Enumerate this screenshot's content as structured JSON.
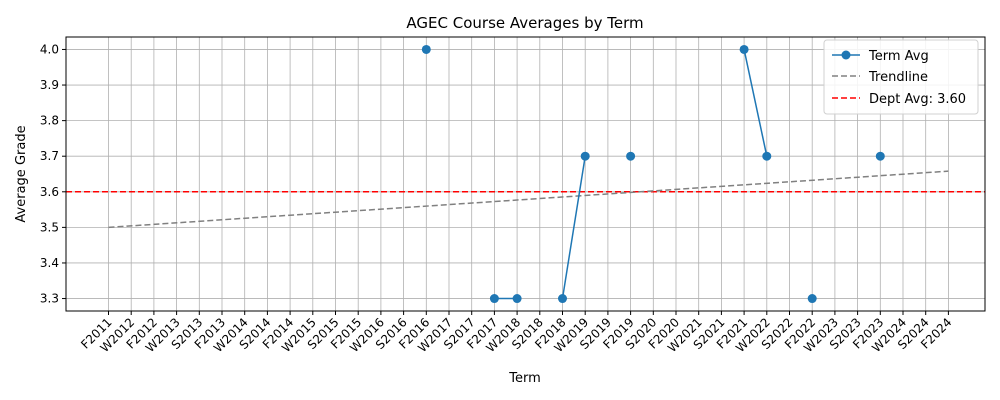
{
  "chart_data": {
    "type": "line",
    "title": "AGEC Course Averages by Term",
    "xlabel": "Term",
    "ylabel": "Average Grade",
    "ylim": [
      3.265,
      4.035
    ],
    "yticks": [
      3.3,
      3.4,
      3.5,
      3.6,
      3.7,
      3.8,
      3.9,
      4.0
    ],
    "ytick_labels": [
      "3.3",
      "3.4",
      "3.5",
      "3.6",
      "3.7",
      "3.8",
      "3.9",
      "4.0"
    ],
    "grid": true,
    "legend_position": "top-right",
    "categories": [
      "F2011",
      "W2012",
      "F2012",
      "W2013",
      "S2013",
      "F2013",
      "W2014",
      "S2014",
      "F2014",
      "W2015",
      "S2015",
      "F2015",
      "W2016",
      "S2016",
      "F2016",
      "W2017",
      "S2017",
      "F2017",
      "W2018",
      "S2018",
      "F2018",
      "W2019",
      "S2019",
      "F2019",
      "S2020",
      "F2020",
      "W2021",
      "S2021",
      "F2021",
      "W2022",
      "S2022",
      "F2022",
      "W2023",
      "S2023",
      "F2023",
      "W2024",
      "S2024",
      "F2024"
    ],
    "series": [
      {
        "name": "Term Avg",
        "color": "#1f77b4",
        "style": "solid-with-markers",
        "values": [
          null,
          null,
          null,
          null,
          null,
          null,
          null,
          null,
          null,
          null,
          null,
          null,
          null,
          null,
          4.0,
          null,
          null,
          3.3,
          3.3,
          null,
          3.3,
          3.7,
          null,
          3.7,
          null,
          null,
          null,
          null,
          4.0,
          3.7,
          null,
          3.3,
          null,
          null,
          3.7,
          null,
          null,
          null
        ]
      },
      {
        "name": "Trendline",
        "color": "#808080",
        "style": "dashed",
        "start": {
          "x": "F2011",
          "y": 3.5
        },
        "end": {
          "x": "F2024",
          "y": 3.658
        }
      },
      {
        "name": "Dept Avg: 3.60",
        "color": "#ff0000",
        "style": "dashed",
        "y": 3.6
      }
    ]
  }
}
